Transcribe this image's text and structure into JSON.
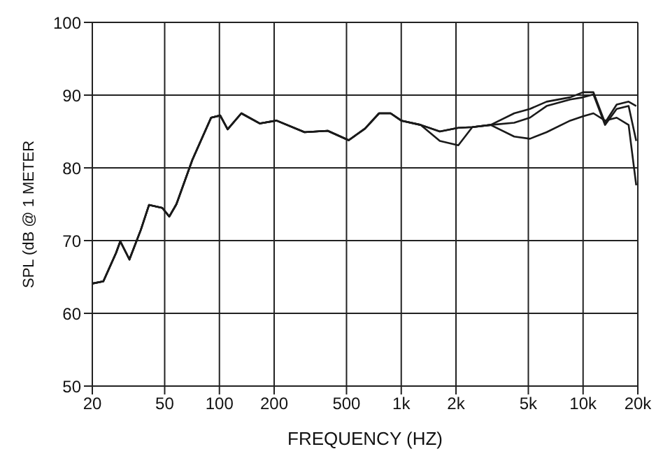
{
  "chart_data": {
    "type": "line",
    "xlabel": "FREQUENCY  (HZ)",
    "ylabel": "SPL (dB @ 1 METER",
    "log": "x",
    "grid": true,
    "legend": false,
    "marker": "none",
    "line_style": "solid",
    "xlim": [
      20,
      20000
    ],
    "ylim": [
      50,
      100
    ],
    "xticks": [
      20,
      50,
      100,
      200,
      500,
      {
        "value": 1000,
        "label": "1k"
      },
      {
        "value": 2000,
        "label": "2k"
      },
      {
        "value": 5000,
        "label": "5k"
      },
      {
        "value": 10000,
        "label": "10k"
      },
      {
        "value": 20000,
        "label": "20k"
      }
    ],
    "yticks": [
      50,
      60,
      70,
      80,
      90,
      100
    ],
    "x": [
      20,
      23,
      27,
      28.5,
      32,
      37,
      41,
      48.5,
      53,
      58,
      71,
      90,
      101,
      111,
      132,
      167,
      206,
      294,
      394,
      514,
      632,
      755,
      874,
      1000,
      1280,
      1630,
      2060,
      2460,
      3100,
      4180,
      5100,
      6300,
      8500,
      10000,
      11400,
      13200,
      15300,
      17800,
      19600
    ],
    "series": [
      {
        "color": "#1a1a1a",
        "values": [
          64.1,
          64.4,
          68.3,
          69.9,
          67.4,
          71.5,
          74.9,
          74.5,
          73.3,
          75,
          81.1,
          86.9,
          87.2,
          85.3,
          87.5,
          86.1,
          86.5,
          84.9,
          85.1,
          83.8,
          85.4,
          87.5,
          87.5,
          86.5,
          85.9,
          85,
          85.5,
          85.6,
          85.9,
          87.5,
          88.1,
          89.1,
          89.7,
          90.4,
          90.4,
          86.2,
          88.7,
          89.1,
          88.5
        ]
      },
      {
        "color": "#1a1a1a",
        "values": [
          64.1,
          64.4,
          68.3,
          69.9,
          67.4,
          71.5,
          74.9,
          74.5,
          73.3,
          75,
          81.1,
          86.9,
          87.2,
          85.3,
          87.5,
          86.1,
          86.5,
          84.9,
          85.1,
          83.8,
          85.4,
          87.5,
          87.5,
          86.5,
          85.9,
          85,
          85.5,
          85.6,
          85.9,
          86.2,
          86.9,
          88.5,
          89.4,
          89.7,
          90.1,
          85.9,
          88.1,
          88.5,
          83.7
        ]
      },
      {
        "color": "#1a1a1a",
        "values": [
          64.1,
          64.4,
          68.3,
          69.9,
          67.4,
          71.5,
          74.9,
          74.5,
          73.3,
          75,
          81.1,
          86.9,
          87.2,
          85.3,
          87.5,
          86.1,
          86.5,
          84.9,
          85.1,
          83.8,
          85.4,
          87.5,
          87.5,
          86.5,
          85.9,
          83.7,
          83.1,
          85.6,
          85.9,
          84.3,
          84,
          84.9,
          86.5,
          87.1,
          87.5,
          86.5,
          86.9,
          85.9,
          77.6
        ]
      }
    ]
  }
}
